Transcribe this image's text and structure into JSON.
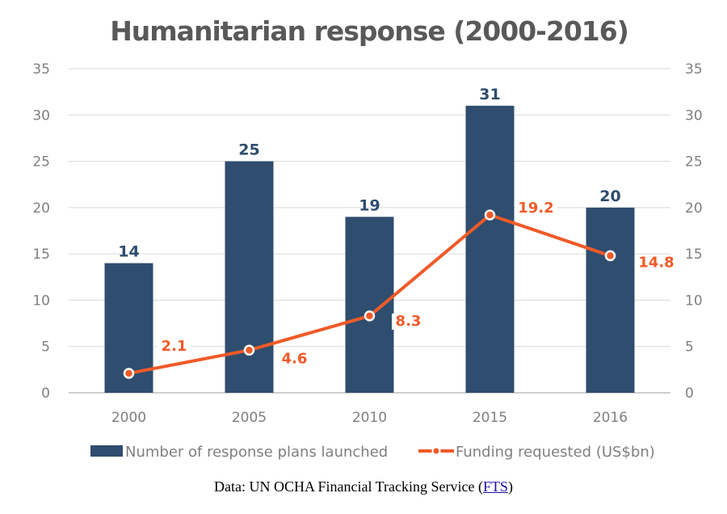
{
  "chart_data": {
    "type": "bar+line",
    "title": "Humanitarian response (2000-2016)",
    "categories": [
      "2000",
      "2005",
      "2010",
      "2015",
      "2016"
    ],
    "series": [
      {
        "name": "Number of response plans launched",
        "type": "bar",
        "axis": "left",
        "values": [
          14,
          25,
          19,
          31,
          20
        ],
        "labels": [
          "14",
          "25",
          "19",
          "31",
          "20"
        ],
        "color": "#2f4d6e"
      },
      {
        "name": "Funding requested (US$bn)",
        "type": "line",
        "axis": "right",
        "values": [
          2.1,
          4.6,
          8.3,
          19.2,
          14.8
        ],
        "labels": [
          "2.1",
          "4.6",
          "8.3",
          "19.2",
          "14.8"
        ],
        "color": "#f05a28"
      }
    ],
    "ylim": [
      0,
      35
    ],
    "yticks": [
      "0",
      "5",
      "10",
      "15",
      "20",
      "25",
      "30",
      "35"
    ],
    "y2lim": [
      0,
      35
    ],
    "grid": true,
    "legend": "bottom"
  },
  "source": {
    "prefix": "Data: UN OCHA Financial Tracking Service (",
    "link": "FTS",
    "suffix": ")"
  }
}
